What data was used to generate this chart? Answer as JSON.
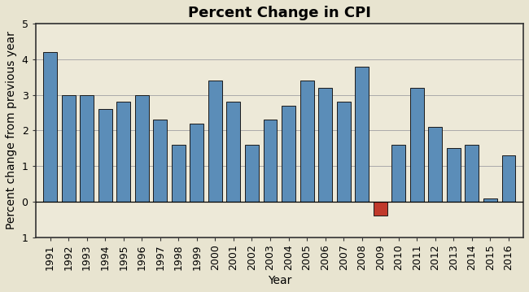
{
  "title": "Percent Change in CPI",
  "xlabel": "Year",
  "ylabel": "Percent change from previous year",
  "years": [
    1991,
    1992,
    1993,
    1994,
    1995,
    1996,
    1997,
    1998,
    1999,
    2000,
    2001,
    2002,
    2003,
    2004,
    2005,
    2006,
    2007,
    2008,
    2009,
    2010,
    2011,
    2012,
    2013,
    2014,
    2015,
    2016
  ],
  "values": [
    4.2,
    3.0,
    3.0,
    2.6,
    2.8,
    3.0,
    2.3,
    1.6,
    2.2,
    3.4,
    2.8,
    1.6,
    2.3,
    2.7,
    3.4,
    3.2,
    2.8,
    3.8,
    -0.4,
    1.6,
    3.2,
    2.1,
    1.5,
    1.6,
    0.1,
    1.3
  ],
  "bar_color_default": "#5B8DB8",
  "bar_color_negative": "#C0392B",
  "bar_edge_color": "#1a1a1a",
  "ylim": [
    -1,
    5
  ],
  "yticks": [
    0,
    1,
    2,
    3,
    4,
    5
  ],
  "ytick_labels": [
    "0",
    "1",
    "2",
    "3",
    "4",
    "5"
  ],
  "ylabel_negative": "1",
  "background_color": "#E8E4D0",
  "plot_background": "#EDE9D8",
  "title_fontsize": 13,
  "axis_label_fontsize": 10,
  "tick_fontsize": 9
}
